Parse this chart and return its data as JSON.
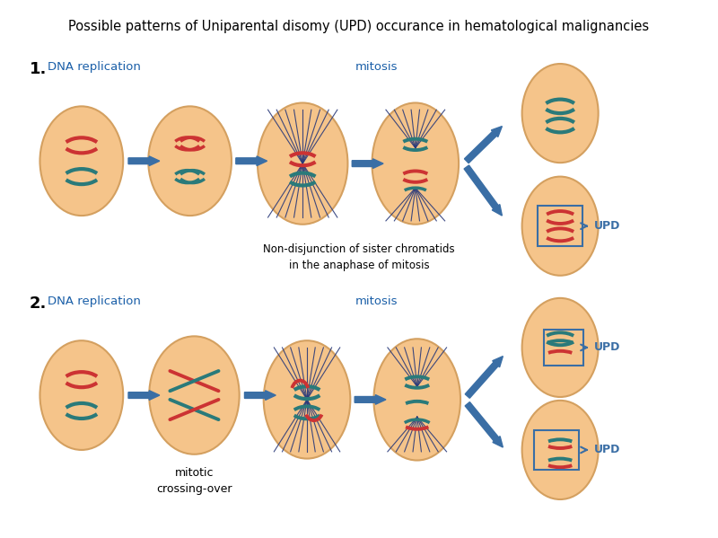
{
  "title": "Possible patterns of Uniparental disomy (UPD) occurance in hematological malignancies",
  "title_fontsize": 10.5,
  "bg_color": "#ffffff",
  "cell_fill": "#F5C48A",
  "cell_edge": "#D4A060",
  "red_color": "#CC3333",
  "teal_color": "#2A7A7A",
  "arrow_color": "#3A6EA5",
  "spindle_color": "#2A3A7A",
  "upd_box_color": "#3A6EA5",
  "label1": "1.",
  "label2": "2.",
  "dna_rep_label": "DNA replication",
  "mitosis_label": "mitosis",
  "non_disj_label": "Non-disjunction of sister chromatids\nin the anaphase of mitosis",
  "mitotic_co_label": "mitotic\ncrossing-over",
  "upd_label": "UPD"
}
